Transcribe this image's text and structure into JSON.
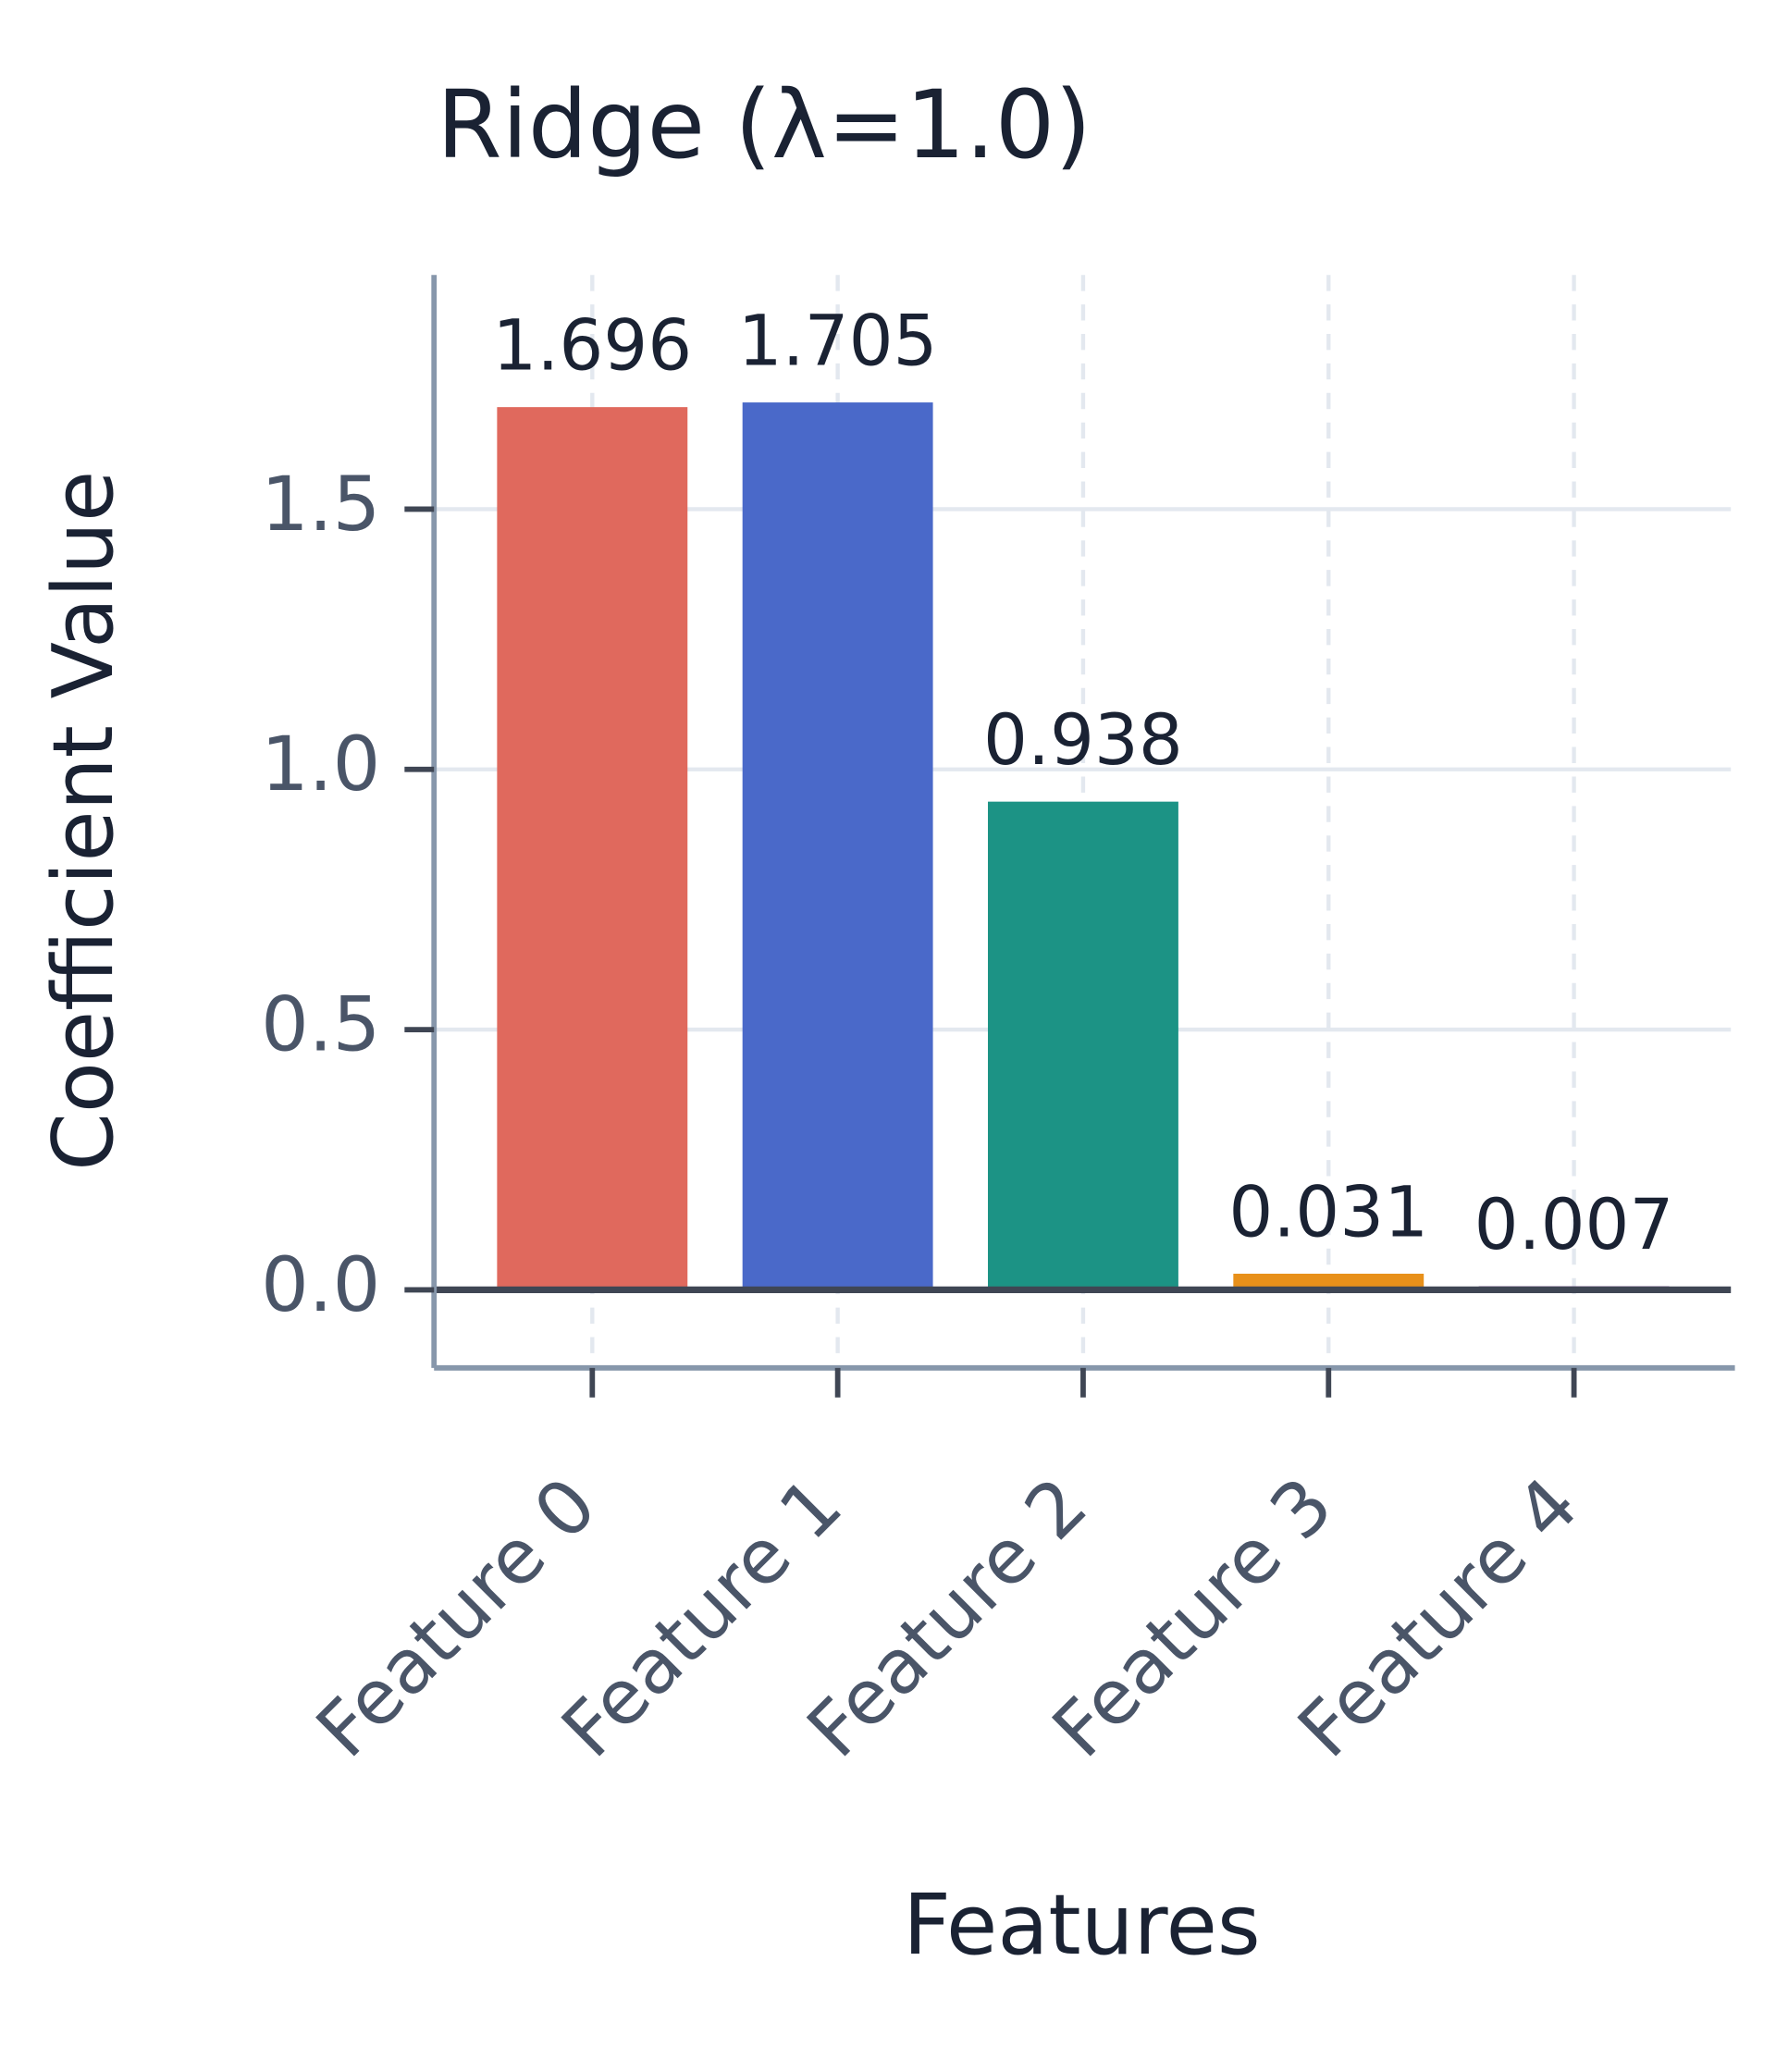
{
  "chart_data": {
    "type": "bar",
    "title": "Ridge (λ=1.0)",
    "x_label": "Features",
    "y_label": "Coefficient Value",
    "categories": [
      "Feature 0",
      "Feature 1",
      "Feature 2",
      "Feature 3",
      "Feature 4"
    ],
    "values": [
      1.696,
      1.705,
      0.938,
      0.031,
      0.007
    ],
    "colors": [
      "#e0695d",
      "#4a69c9",
      "#1c9385",
      "#e8901a",
      "#8e5ea2"
    ],
    "ylim": [
      -0.15,
      1.95
    ],
    "yticks": [
      {
        "value": 0,
        "label": "0.0"
      },
      0.5,
      {
        "value": 1,
        "label": "1.0"
      },
      1.5
    ],
    "grid": true
  }
}
